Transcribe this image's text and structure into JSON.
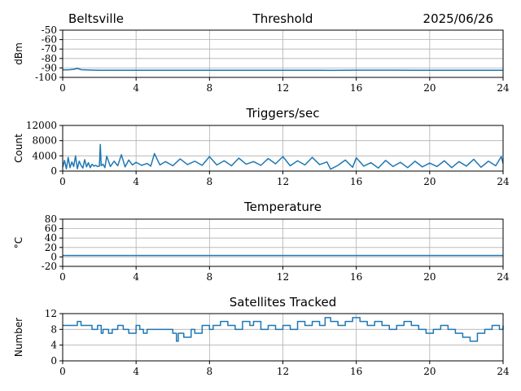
{
  "header": {
    "station": "Beltsville",
    "date": "2025/06/26"
  },
  "colors": {
    "series": "#1f77b4",
    "grid": "#b0b0b0"
  },
  "chart_data": [
    {
      "id": "threshold",
      "type": "line",
      "title": "Threshold",
      "ylabel": "dBm",
      "ylim": [
        -100,
        -50
      ],
      "yticks": [
        "-100",
        "-90",
        "-80",
        "-70",
        "-60",
        "-50"
      ],
      "ytick_values": [
        -100,
        -90,
        -80,
        -70,
        -60,
        -50
      ],
      "xlim": [
        0,
        24
      ],
      "xticks": [
        "0",
        "4",
        "8",
        "12",
        "16",
        "20",
        "24"
      ],
      "xtick_values": [
        0,
        4,
        8,
        12,
        16,
        20,
        24
      ],
      "grid": true,
      "series": [
        {
          "x": [
            0,
            0.3,
            0.6,
            0.8,
            1.0,
            1.5,
            2.0,
            4,
            6,
            8,
            10,
            12,
            14,
            14.6,
            16,
            18,
            20,
            22,
            24
          ],
          "y": [
            -92,
            -92,
            -91.5,
            -90.5,
            -91.8,
            -92.2,
            -92.5,
            -92.5,
            -92.5,
            -92.5,
            -92.5,
            -92.5,
            -92.5,
            -92.6,
            -92.4,
            -92.3,
            -92.5,
            -92.5,
            -92.5
          ]
        }
      ]
    },
    {
      "id": "triggers",
      "type": "line",
      "title": "Triggers/sec",
      "ylabel": "Count",
      "ylim": [
        0,
        12000
      ],
      "yticks": [
        "0",
        "4000",
        "8000",
        "12000"
      ],
      "ytick_values": [
        0,
        4000,
        8000,
        12000
      ],
      "xlim": [
        0,
        24
      ],
      "xticks": [
        "0",
        "4",
        "8",
        "12",
        "16",
        "20",
        "24"
      ],
      "xtick_values": [
        0,
        4,
        8,
        12,
        16,
        20,
        24
      ],
      "grid": true,
      "series": [
        {
          "x": [
            0,
            0.1,
            0.2,
            0.3,
            0.4,
            0.5,
            0.6,
            0.7,
            0.8,
            0.9,
            1.0,
            1.1,
            1.2,
            1.3,
            1.4,
            1.5,
            1.6,
            1.7,
            1.8,
            1.9,
            2.0,
            2.05,
            2.1,
            2.2,
            2.3,
            2.4,
            2.6,
            2.8,
            3.0,
            3.2,
            3.4,
            3.6,
            3.8,
            4.0,
            4.3,
            4.6,
            4.8,
            5.0,
            5.3,
            5.6,
            6.0,
            6.4,
            6.8,
            7.2,
            7.6,
            8.0,
            8.4,
            8.8,
            9.2,
            9.6,
            10.0,
            10.4,
            10.8,
            11.2,
            11.6,
            12.0,
            12.4,
            12.8,
            13.2,
            13.6,
            14.0,
            14.4,
            14.6,
            15.0,
            15.4,
            15.8,
            16.0,
            16.4,
            16.8,
            17.2,
            17.6,
            18.0,
            18.4,
            18.8,
            19.2,
            19.6,
            20.0,
            20.4,
            20.8,
            21.2,
            21.6,
            22.0,
            22.4,
            22.8,
            23.2,
            23.6,
            23.9,
            24.0
          ],
          "y": [
            1000,
            2800,
            600,
            3600,
            900,
            2400,
            1200,
            4000,
            600,
            2600,
            1500,
            800,
            3000,
            1100,
            2200,
            900,
            1800,
            1300,
            1500,
            1200,
            1300,
            7000,
            1400,
            1800,
            900,
            3900,
            1200,
            2600,
            1400,
            4300,
            1100,
            2900,
            1600,
            2300,
            1500,
            2000,
            1300,
            4600,
            1600,
            2500,
            1400,
            3200,
            1700,
            2600,
            1500,
            3800,
            1600,
            2700,
            1400,
            3400,
            1800,
            2500,
            1500,
            3300,
            1900,
            3800,
            1400,
            2700,
            1600,
            3600,
            1700,
            2400,
            500,
            1500,
            2900,
            1000,
            3500,
            1300,
            2200,
            800,
            2800,
            1200,
            2300,
            900,
            2600,
            1100,
            2100,
            1200,
            2700,
            900,
            2500,
            1300,
            3100,
            1000,
            2600,
            1400,
            3800,
            2000
          ]
        }
      ]
    },
    {
      "id": "temperature",
      "type": "line",
      "title": "Temperature",
      "ylabel": "°C",
      "ylim": [
        -20,
        80
      ],
      "yticks": [
        "-20",
        "0",
        "20",
        "40",
        "60",
        "80"
      ],
      "ytick_values": [
        -20,
        0,
        20,
        40,
        60,
        80
      ],
      "xlim": [
        0,
        24
      ],
      "xticks": [
        "0",
        "4",
        "8",
        "12",
        "16",
        "20",
        "24"
      ],
      "xtick_values": [
        0,
        4,
        8,
        12,
        16,
        20,
        24
      ],
      "grid": true,
      "series": [
        {
          "x": [
            0,
            24
          ],
          "y": [
            3,
            3
          ]
        }
      ]
    },
    {
      "id": "satellites",
      "type": "line",
      "title": "Satellites Tracked",
      "ylabel": "Number",
      "ylim": [
        0,
        12
      ],
      "yticks": [
        "0",
        "4",
        "8",
        "12"
      ],
      "ytick_values": [
        0,
        4,
        8,
        12
      ],
      "xlim": [
        0,
        24
      ],
      "xticks": [
        "0",
        "4",
        "8",
        "12",
        "16",
        "20",
        "24"
      ],
      "xtick_values": [
        0,
        4,
        8,
        12,
        16,
        20,
        24
      ],
      "grid": true,
      "series": [
        {
          "step": true,
          "x": [
            0,
            0.8,
            1.0,
            1.6,
            1.9,
            2.1,
            2.2,
            2.5,
            2.7,
            3.0,
            3.3,
            3.6,
            4.0,
            4.2,
            4.4,
            4.6,
            4.8,
            5.2,
            6.0,
            6.2,
            6.3,
            6.6,
            7.0,
            7.2,
            7.6,
            8.0,
            8.2,
            8.6,
            9.0,
            9.4,
            9.8,
            10.2,
            10.4,
            10.8,
            11.2,
            11.6,
            12.0,
            12.4,
            12.8,
            13.2,
            13.6,
            14.0,
            14.3,
            14.6,
            15.0,
            15.4,
            15.8,
            16.2,
            16.6,
            17.0,
            17.4,
            17.8,
            18.2,
            18.6,
            19.0,
            19.4,
            19.8,
            20.2,
            20.6,
            21.0,
            21.4,
            21.8,
            22.2,
            22.6,
            23.0,
            23.4,
            23.8,
            24.0
          ],
          "y": [
            9,
            10,
            9,
            8,
            9,
            7,
            8,
            7,
            8,
            9,
            8,
            7,
            9,
            8,
            7,
            8,
            8,
            8,
            7,
            5,
            7,
            6,
            8,
            7,
            9,
            8,
            9,
            10,
            9,
            8,
            10,
            9,
            10,
            8,
            9,
            8,
            9,
            8,
            10,
            9,
            10,
            9,
            11,
            10,
            9,
            10,
            11,
            10,
            9,
            10,
            9,
            8,
            9,
            10,
            9,
            8,
            7,
            8,
            9,
            8,
            7,
            6,
            5,
            7,
            8,
            9,
            8,
            9
          ]
        }
      ]
    }
  ]
}
